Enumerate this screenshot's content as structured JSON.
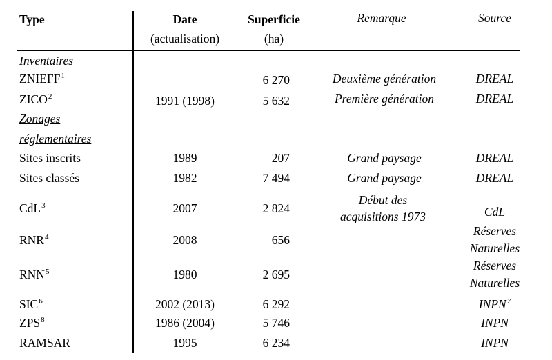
{
  "header": {
    "type": "Type",
    "date": "Date",
    "date_sub": "(actualisation)",
    "area": "Superficie",
    "area_sub": "(ha)",
    "remark": "Remarque",
    "source": "Source"
  },
  "sections": {
    "inventaires": "Inventaires",
    "zonages_line1": "Zonages",
    "zonages_line2": "réglementaires"
  },
  "rows": [
    {
      "type": "ZNIEFF",
      "sup": "1",
      "date": "",
      "area": "6 270",
      "remark": "Deuxième génération",
      "source": "DREAL"
    },
    {
      "type": "ZICO",
      "sup": "2",
      "date": "1991 (1998)",
      "area": "5 632",
      "remark": "Première génération",
      "source": "DREAL"
    },
    {
      "type": "Sites inscrits",
      "sup": "",
      "date": "1989",
      "area": "207",
      "remark": "Grand paysage",
      "source": "DREAL"
    },
    {
      "type": "Sites classés",
      "sup": "",
      "date": "1982",
      "area": "7 494",
      "remark": "Grand paysage",
      "source": "DREAL"
    },
    {
      "type": "CdL",
      "sup": "3",
      "date": "2007",
      "area": "2 824",
      "remark_line1": "Début des",
      "remark_line2": "acquisitions 1973",
      "source": "CdL"
    },
    {
      "type": "RNR",
      "sup": "4",
      "date": "2008",
      "area": "656",
      "source_line1": "Réserves",
      "source_line2": "Naturelles"
    },
    {
      "type": "RNN",
      "sup": "5",
      "date": "1980",
      "area": "2 695",
      "source_line1": "Réserves",
      "source_line2": "Naturelles"
    },
    {
      "type": "SIC",
      "sup": "6",
      "date": "2002 (2013)",
      "area": "6 292",
      "source": "INPN",
      "source_sup": "7"
    },
    {
      "type": "ZPS",
      "sup": "8",
      "date": "1986 (2004)",
      "area": "5 746",
      "source": "INPN"
    },
    {
      "type": "RAMSAR",
      "sup": "",
      "date": "1995",
      "area": "6 234",
      "source": "INPN"
    }
  ]
}
